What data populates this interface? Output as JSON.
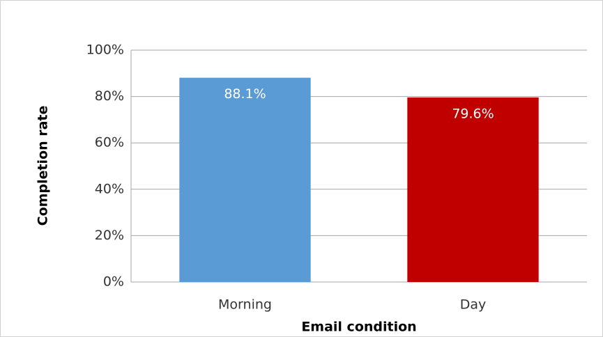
{
  "chart_data": {
    "type": "bar",
    "categories": [
      "Morning",
      "Day"
    ],
    "values": [
      88.1,
      79.6
    ],
    "value_labels": [
      "88.1%",
      "79.6%"
    ],
    "colors": [
      "#5b9bd5",
      "#c00000"
    ],
    "xlabel": "Email condition",
    "ylabel": "Completion rate",
    "ylim": [
      0,
      100
    ],
    "yticks": [
      {
        "value": 0,
        "label": "0%"
      },
      {
        "value": 20,
        "label": "20%"
      },
      {
        "value": 40,
        "label": "40%"
      },
      {
        "value": 60,
        "label": "60%"
      },
      {
        "value": 80,
        "label": "80%"
      },
      {
        "value": 100,
        "label": "100%"
      }
    ],
    "grid": true
  }
}
